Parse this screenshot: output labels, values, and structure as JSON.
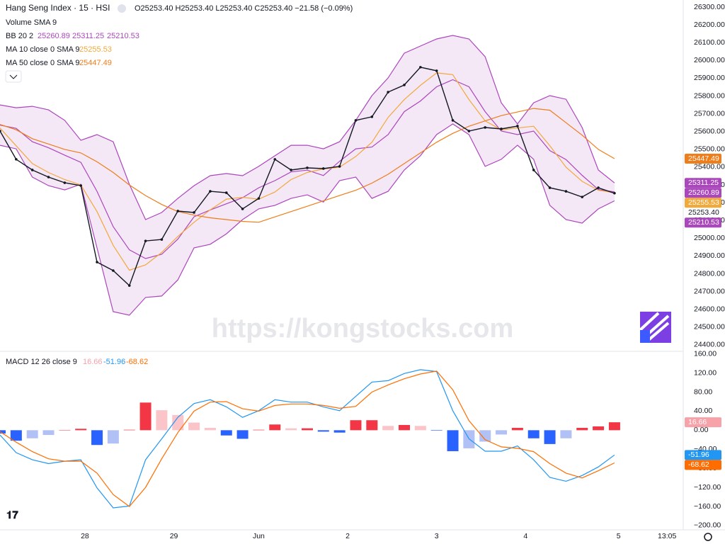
{
  "chart_data": [
    {
      "type": "line",
      "title": "Hang Seng Index · 15 · HSI",
      "ohlc": "O25253.40 H25253.40 L25253.40 C25253.40 −21.58 (−0.09%)",
      "volume_label": "Volume SMA 9",
      "watermark": "https://kongstocks.com",
      "x": [
        0,
        4,
        8,
        12,
        16,
        20,
        24,
        28,
        32,
        36,
        40,
        44,
        48,
        52,
        56,
        60,
        64,
        68,
        72,
        76,
        80,
        84,
        88,
        92,
        96,
        100,
        104,
        108,
        112,
        116,
        120,
        124,
        128,
        132,
        136,
        140,
        144,
        148,
        152
      ],
      "xlim": [
        0,
        169
      ],
      "ylim": [
        24368,
        26340
      ],
      "yticks": [
        {
          "value": 24400,
          "label": "24400.00"
        },
        {
          "value": 24500,
          "label": "24500.00"
        },
        {
          "value": 24600,
          "label": "24600.00"
        },
        {
          "value": 24700,
          "label": "24700.00"
        },
        {
          "value": 24800,
          "label": "24800.00"
        },
        {
          "value": 24900,
          "label": "24900.00"
        },
        {
          "value": 25000,
          "label": "25000.00"
        },
        {
          "value": 25100,
          "label": "25100.00"
        },
        {
          "value": 25200,
          "label": "25200.00"
        },
        {
          "value": 25300,
          "label": "25300.00"
        },
        {
          "value": 25400,
          "label": "25400.00"
        },
        {
          "value": 25500,
          "label": "25500.00"
        },
        {
          "value": 25600,
          "label": "25600.00"
        },
        {
          "value": 25700,
          "label": "25700.00"
        },
        {
          "value": 25800,
          "label": "25800.00"
        },
        {
          "value": 25900,
          "label": "25900.00"
        },
        {
          "value": 26000,
          "label": "26000.00"
        },
        {
          "value": 26100,
          "label": "26100.00"
        },
        {
          "value": 26200,
          "label": "26200.00"
        },
        {
          "value": 26300,
          "label": "26300.00"
        }
      ],
      "close": {
        "color": "#131722",
        "last_label": "25253.40",
        "values": [
          25603,
          25444,
          25384,
          25344,
          25312,
          25296,
          24866,
          24818,
          24734,
          24985,
          24993,
          25153,
          25145,
          25264,
          25256,
          25165,
          25224,
          25444,
          25384,
          25396,
          25392,
          25404,
          25663,
          25683,
          25822,
          25862,
          25962,
          25942,
          25663,
          25603,
          25623,
          25615,
          25631,
          25384,
          25284,
          25264,
          25232,
          25284,
          25253.4
        ]
      },
      "bands": {
        "name": "BB 20 2",
        "color": "#ab47bc",
        "fill": "rgba(171,71,188,0.13)",
        "basis": [
          25636,
          25618,
          25543,
          25509,
          25467,
          25427,
          25264,
          25065,
          24935,
          24886,
          24910,
          24995,
          25121,
          25159,
          25194,
          25228,
          25284,
          25324,
          25373,
          25383,
          25353,
          25433,
          25503,
          25513,
          25583,
          25712,
          25772,
          25852,
          25892,
          25852,
          25712,
          25603,
          25583,
          25603,
          25493,
          25443,
          25354,
          25274,
          25260.89
        ],
        "upper": [
          25750,
          25734,
          25742,
          25722,
          25663,
          25551,
          25583,
          25543,
          25304,
          25105,
          25145,
          25224,
          25296,
          25352,
          25364,
          25352,
          25404,
          25464,
          25523,
          25523,
          25503,
          25543,
          25663,
          25802,
          25902,
          26041,
          26081,
          26121,
          26141,
          26121,
          26021,
          25762,
          25643,
          25762,
          25802,
          25782,
          25623,
          25384,
          25311.25
        ],
        "lower": [
          25523,
          25503,
          25344,
          25296,
          25272,
          25304,
          24946,
          24587,
          24567,
          24667,
          24675,
          24766,
          24946,
          24966,
          25025,
          25105,
          25165,
          25185,
          25224,
          25244,
          25204,
          25324,
          25344,
          25224,
          25264,
          25384,
          25464,
          25583,
          25643,
          25583,
          25404,
          25444,
          25523,
          25444,
          25185,
          25105,
          25085,
          25165,
          25210.53
        ]
      },
      "series": [
        {
          "name": "MA 10 close 0 SMA 9",
          "color": "#f2a93b",
          "values": [
            25620,
            25520,
            25420,
            25370,
            25330,
            25300,
            25150,
            24960,
            24820,
            24850,
            24920,
            25010,
            25090,
            25160,
            25220,
            25230,
            25220,
            25260,
            25330,
            25370,
            25390,
            25400,
            25460,
            25540,
            25680,
            25780,
            25860,
            25930,
            25920,
            25780,
            25660,
            25610,
            25620,
            25630,
            25520,
            25400,
            25320,
            25270,
            25255.53
          ]
        },
        {
          "name": "MA 50 close 0 SMA 9",
          "color": "#ef7d1a",
          "values": [
            25640,
            25610,
            25560,
            25530,
            25500,
            25480,
            25430,
            25370,
            25300,
            25240,
            25190,
            25150,
            25130,
            25115,
            25105,
            25095,
            25090,
            25120,
            25150,
            25180,
            25210,
            25240,
            25270,
            25310,
            25360,
            25420,
            25480,
            25540,
            25590,
            25630,
            25660,
            25690,
            25710,
            25730,
            25720,
            25650,
            25580,
            25500,
            25447.49
          ]
        }
      ]
    },
    {
      "type": "macd",
      "name": "MACD 12 26 close 9",
      "x": [
        0,
        4,
        8,
        12,
        16,
        20,
        24,
        28,
        32,
        36,
        40,
        44,
        48,
        52,
        56,
        60,
        64,
        68,
        72,
        76,
        80,
        84,
        88,
        92,
        96,
        100,
        104,
        108,
        112,
        116,
        120,
        124,
        128,
        132,
        136,
        140,
        144,
        148,
        152
      ],
      "xlim": [
        0,
        169
      ],
      "xticks": [
        {
          "value": 21,
          "label": "28"
        },
        {
          "value": 43,
          "label": "29"
        },
        {
          "value": 64,
          "label": "Jun"
        },
        {
          "value": 86,
          "label": "2"
        },
        {
          "value": 108,
          "label": "3"
        },
        {
          "value": 130,
          "label": "4"
        },
        {
          "value": 153,
          "label": "5"
        },
        {
          "value": 165,
          "label": "13:05"
        }
      ],
      "ylim": [
        -209,
        164
      ],
      "yticks": [
        {
          "value": 160,
          "label": "160.00"
        },
        {
          "value": 120,
          "label": "120.00"
        },
        {
          "value": 80,
          "label": "80.00"
        },
        {
          "value": 40,
          "label": "40.00"
        },
        {
          "value": 0,
          "label": "0.00"
        },
        {
          "value": -40,
          "label": "−40.00"
        },
        {
          "value": -80,
          "label": "−80.00"
        },
        {
          "value": -120,
          "label": "−120.00"
        },
        {
          "value": -160,
          "label": "−160.00"
        },
        {
          "value": -200,
          "label": "−200.00"
        }
      ],
      "histogram": {
        "color": "#f7a1a9",
        "colors": {
          "pos_up": "#f23645",
          "pos_down": "#fbc4c9",
          "neg_down": "#2962ff",
          "neg_up": "#b2c1f5"
        },
        "values": [
          -7,
          -22,
          -17,
          -10,
          0,
          3,
          -31,
          -28,
          1,
          58,
          42,
          32,
          16,
          5,
          -11,
          -18,
          1,
          12,
          4,
          4,
          -3,
          -5,
          21,
          21,
          9,
          11,
          9,
          -1,
          -44,
          -38,
          -24,
          -9,
          5,
          -17,
          -29,
          -17,
          5,
          8,
          16.66
        ]
      },
      "macd": {
        "color": "#2196f3",
        "values": [
          -10,
          -47,
          -62,
          -70,
          -65,
          -62,
          -121,
          -163,
          -159,
          -62,
          -18,
          27,
          56,
          64,
          49,
          27,
          41,
          64,
          59,
          59,
          49,
          41,
          71,
          101,
          104,
          119,
          127,
          123,
          41,
          -18,
          -44,
          -44,
          -33,
          -62,
          -99,
          -107,
          -95,
          -77,
          -51.96
        ]
      },
      "signal": {
        "color": "#ff6d00",
        "values": [
          -3,
          -25,
          -45,
          -60,
          -65,
          -65,
          -90,
          -135,
          -160,
          -120,
          -60,
          -5,
          40,
          59,
          60,
          45,
          40,
          52,
          55,
          55,
          52,
          46,
          50,
          80,
          95,
          108,
          118,
          124,
          85,
          20,
          -20,
          -35,
          -38,
          -45,
          -70,
          -90,
          -100,
          -85,
          -68.62
        ]
      }
    }
  ]
}
